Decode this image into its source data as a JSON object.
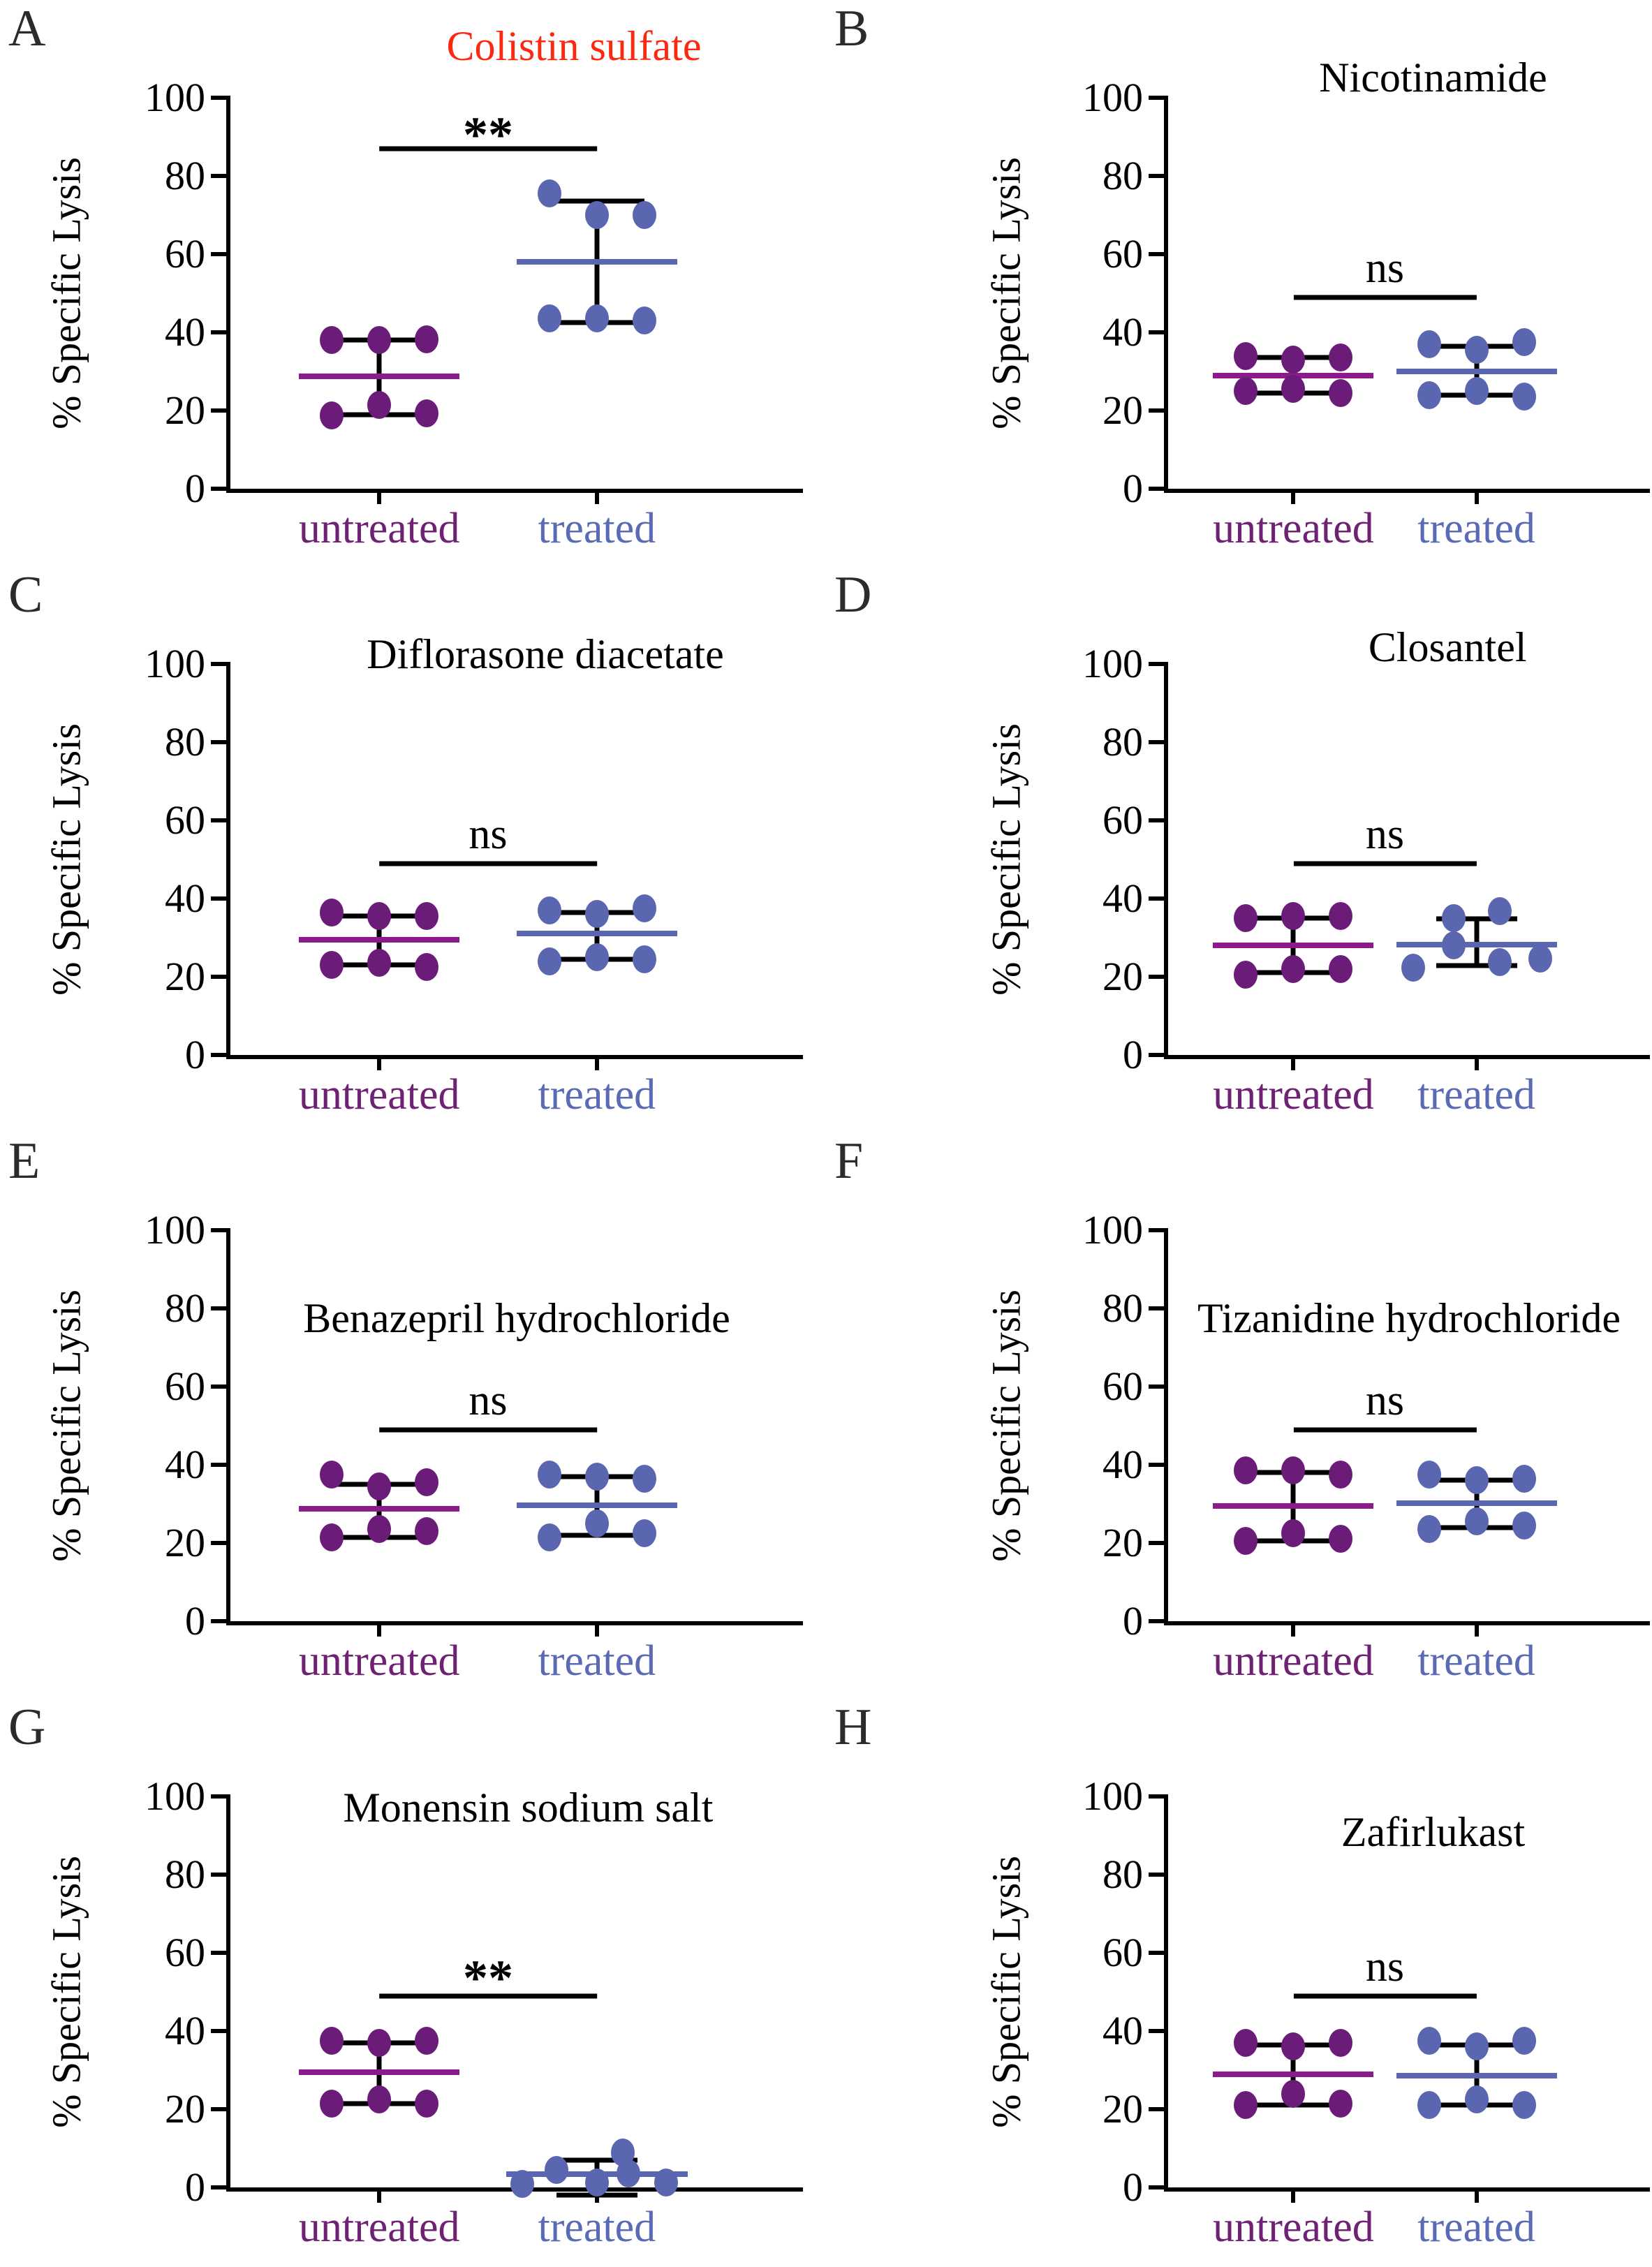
{
  "figure": {
    "ylabel": "% Specific Lysis",
    "y_ticks": [
      0,
      20,
      40,
      60,
      80,
      100
    ],
    "categories": [
      {
        "label": "untreated",
        "color": "#6f2173",
        "dot_color": "#6a1c78",
        "median_color": "#8b1a8b"
      },
      {
        "label": "treated",
        "color": "#5a6ab5",
        "dot_color": "#5a66b0",
        "median_color": "#5a66b0"
      }
    ],
    "colors": {
      "axis": "#000000",
      "red_title": "#fb2912",
      "black_title": "#000000",
      "letter": "#2b2b2b"
    }
  },
  "chart_data": [
    {
      "type": "scatter",
      "panel": "A",
      "title": "Colistin sulfate",
      "title_color": "#fb2912",
      "ylabel": "% Specific Lysis",
      "ylim": [
        0,
        100
      ],
      "significance": {
        "label": "**",
        "bar_y": 87,
        "label_y": 97,
        "bold": true
      },
      "title_top": -105,
      "title_left_pct": 60,
      "groups": [
        {
          "name": "untreated",
          "median": 28.7,
          "whisker_low": 19,
          "whisker_high": 38,
          "points": [
            {
              "dx": -68,
              "y": 38
            },
            {
              "dx": 0,
              "y": 38
            },
            {
              "dx": 68,
              "y": 38.2
            },
            {
              "dx": -68,
              "y": 18.8
            },
            {
              "dx": 0,
              "y": 21.5
            },
            {
              "dx": 68,
              "y": 19.3
            }
          ]
        },
        {
          "name": "treated",
          "median": 58,
          "whisker_low": 42.5,
          "whisker_high": 73.5,
          "points": [
            {
              "dx": -68,
              "y": 75.5
            },
            {
              "dx": 0,
              "y": 70
            },
            {
              "dx": 68,
              "y": 70
            },
            {
              "dx": -68,
              "y": 43.5
            },
            {
              "dx": 0,
              "y": 43.5
            },
            {
              "dx": 68,
              "y": 43
            }
          ]
        }
      ]
    },
    {
      "type": "scatter",
      "panel": "B",
      "title": "Nicotinamide",
      "title_color": "#000000",
      "ylabel": "% Specific Lysis",
      "ylim": [
        0,
        100
      ],
      "significance": {
        "label": "ns",
        "bar_y": 49,
        "label_y": 62,
        "bold": false
      },
      "title_top": -60,
      "title_left_pct": 55,
      "groups": [
        {
          "name": "untreated",
          "median": 29,
          "whisker_low": 24.5,
          "whisker_high": 33.5,
          "points": [
            {
              "dx": -68,
              "y": 34
            },
            {
              "dx": 0,
              "y": 33
            },
            {
              "dx": 68,
              "y": 33.5
            },
            {
              "dx": -68,
              "y": 25
            },
            {
              "dx": 0,
              "y": 25.5
            },
            {
              "dx": 68,
              "y": 24.5
            }
          ]
        },
        {
          "name": "treated",
          "median": 30,
          "whisker_low": 24,
          "whisker_high": 36.5,
          "points": [
            {
              "dx": -68,
              "y": 37
            },
            {
              "dx": 0,
              "y": 35.5
            },
            {
              "dx": 68,
              "y": 37.5
            },
            {
              "dx": -68,
              "y": 24
            },
            {
              "dx": 0,
              "y": 25
            },
            {
              "dx": 68,
              "y": 23.5
            }
          ]
        }
      ]
    },
    {
      "type": "scatter",
      "panel": "C",
      "title": "Diflorasone diacetate",
      "title_color": "#000000",
      "ylabel": "% Specific Lysis",
      "ylim": [
        0,
        100
      ],
      "significance": {
        "label": "ns",
        "bar_y": 49,
        "label_y": 62,
        "bold": false
      },
      "title_top": -45,
      "title_left_pct": 55,
      "groups": [
        {
          "name": "untreated",
          "median": 29.5,
          "whisker_low": 23,
          "whisker_high": 35.5,
          "points": [
            {
              "dx": -68,
              "y": 36.5
            },
            {
              "dx": 0,
              "y": 35.5
            },
            {
              "dx": 68,
              "y": 35.5
            },
            {
              "dx": -68,
              "y": 23
            },
            {
              "dx": 0,
              "y": 23.5
            },
            {
              "dx": 68,
              "y": 22.5
            }
          ]
        },
        {
          "name": "treated",
          "median": 31,
          "whisker_low": 24.5,
          "whisker_high": 36.5,
          "points": [
            {
              "dx": -68,
              "y": 37
            },
            {
              "dx": 0,
              "y": 36
            },
            {
              "dx": 68,
              "y": 37.5
            },
            {
              "dx": -68,
              "y": 24
            },
            {
              "dx": 0,
              "y": 25
            },
            {
              "dx": 68,
              "y": 24.5
            }
          ]
        }
      ]
    },
    {
      "type": "scatter",
      "panel": "D",
      "title": "Closantel",
      "title_color": "#000000",
      "ylabel": "% Specific Lysis",
      "ylim": [
        0,
        100
      ],
      "significance": {
        "label": "ns",
        "bar_y": 49,
        "label_y": 62,
        "bold": false
      },
      "title_top": -55,
      "title_left_pct": 58,
      "groups": [
        {
          "name": "untreated",
          "median": 28,
          "whisker_low": 21,
          "whisker_high": 35,
          "points": [
            {
              "dx": -68,
              "y": 35
            },
            {
              "dx": 0,
              "y": 35.5
            },
            {
              "dx": 68,
              "y": 35.5
            },
            {
              "dx": -68,
              "y": 20.5
            },
            {
              "dx": 0,
              "y": 22
            },
            {
              "dx": 68,
              "y": 22
            }
          ]
        },
        {
          "name": "treated",
          "median": 28.3,
          "whisker_low": 22.8,
          "whisker_high": 34.8,
          "cap_half": 58,
          "points": [
            {
              "dx": -33,
              "y": 35
            },
            {
              "dx": 33,
              "y": 36.7
            },
            {
              "dx": -33,
              "y": 28.1
            },
            {
              "dx": -91,
              "y": 22.4
            },
            {
              "dx": 33,
              "y": 23.7
            },
            {
              "dx": 91,
              "y": 24.6
            }
          ]
        }
      ]
    },
    {
      "type": "scatter",
      "panel": "E",
      "title": "Benazepril hydrochloride",
      "title_color": "#000000",
      "ylabel": "% Specific Lysis",
      "ylim": [
        0,
        100
      ],
      "significance": {
        "label": "ns",
        "bar_y": 49,
        "label_y": 62,
        "bold": false
      },
      "title_top": 95,
      "title_left_pct": 50,
      "groups": [
        {
          "name": "untreated",
          "median": 28.7,
          "whisker_low": 21.5,
          "whisker_high": 35,
          "points": [
            {
              "dx": -68,
              "y": 37.5
            },
            {
              "dx": 0,
              "y": 34.5
            },
            {
              "dx": 68,
              "y": 35.5
            },
            {
              "dx": -68,
              "y": 21.5
            },
            {
              "dx": 0,
              "y": 23.5
            },
            {
              "dx": 68,
              "y": 23
            }
          ]
        },
        {
          "name": "treated",
          "median": 29.7,
          "whisker_low": 22,
          "whisker_high": 37,
          "points": [
            {
              "dx": -68,
              "y": 37.5
            },
            {
              "dx": 0,
              "y": 37
            },
            {
              "dx": 68,
              "y": 36.5
            },
            {
              "dx": -68,
              "y": 21.5
            },
            {
              "dx": 0,
              "y": 25
            },
            {
              "dx": 68,
              "y": 22.5
            }
          ]
        }
      ]
    },
    {
      "type": "scatter",
      "panel": "F",
      "title": "Tizanidine hydrochloride",
      "title_color": "#000000",
      "ylabel": "% Specific Lysis",
      "ylim": [
        0,
        100
      ],
      "significance": {
        "label": "ns",
        "bar_y": 49,
        "label_y": 62,
        "bold": false
      },
      "title_top": 95,
      "title_left_pct": 50,
      "groups": [
        {
          "name": "untreated",
          "median": 29.5,
          "whisker_low": 20.5,
          "whisker_high": 38,
          "points": [
            {
              "dx": -68,
              "y": 38.5
            },
            {
              "dx": 0,
              "y": 38.5
            },
            {
              "dx": 68,
              "y": 37.5
            },
            {
              "dx": -68,
              "y": 20.5
            },
            {
              "dx": 0,
              "y": 22.5
            },
            {
              "dx": 68,
              "y": 21
            }
          ]
        },
        {
          "name": "treated",
          "median": 30.2,
          "whisker_low": 24,
          "whisker_high": 36,
          "points": [
            {
              "dx": -68,
              "y": 37.5
            },
            {
              "dx": 0,
              "y": 36
            },
            {
              "dx": 68,
              "y": 36.5
            },
            {
              "dx": -68,
              "y": 23.5
            },
            {
              "dx": 0,
              "y": 25.5
            },
            {
              "dx": 68,
              "y": 24.5
            }
          ]
        }
      ]
    },
    {
      "type": "scatter",
      "panel": "G",
      "title": "Monensin sodium salt",
      "title_color": "#000000",
      "ylabel": "% Specific Lysis",
      "ylim": [
        0,
        100
      ],
      "significance": {
        "label": "**",
        "bar_y": 49,
        "label_y": 60,
        "bold": true
      },
      "title_top": -15,
      "title_left_pct": 52,
      "groups": [
        {
          "name": "untreated",
          "median": 29.5,
          "whisker_low": 21.5,
          "whisker_high": 37,
          "points": [
            {
              "dx": -68,
              "y": 37.5
            },
            {
              "dx": 0,
              "y": 37
            },
            {
              "dx": 68,
              "y": 37.5
            },
            {
              "dx": -68,
              "y": 21.5
            },
            {
              "dx": 0,
              "y": 22.5
            },
            {
              "dx": 68,
              "y": 21.5
            }
          ]
        },
        {
          "name": "treated",
          "median": 3.4,
          "whisker_low": -2,
          "whisker_high": 7,
          "cap_half": 58,
          "median_half": 130,
          "points": [
            {
              "dx": -107,
              "y": 0.9
            },
            {
              "dx": -58,
              "y": 4.5
            },
            {
              "dx": 0,
              "y": 1.3
            },
            {
              "dx": 37,
              "y": 9
            },
            {
              "dx": 45,
              "y": 3.6
            },
            {
              "dx": 99,
              "y": 1.3
            }
          ]
        }
      ]
    },
    {
      "type": "scatter",
      "panel": "H",
      "title": "Zafirlukast",
      "title_color": "#000000",
      "ylabel": "% Specific Lysis",
      "ylim": [
        0,
        100
      ],
      "significance": {
        "label": "ns",
        "bar_y": 49,
        "label_y": 62,
        "bold": false
      },
      "title_top": 20,
      "title_left_pct": 55,
      "groups": [
        {
          "name": "untreated",
          "median": 29,
          "whisker_low": 21,
          "whisker_high": 36.5,
          "points": [
            {
              "dx": -68,
              "y": 37
            },
            {
              "dx": 0,
              "y": 36
            },
            {
              "dx": 68,
              "y": 37
            },
            {
              "dx": -68,
              "y": 21
            },
            {
              "dx": 0,
              "y": 24
            },
            {
              "dx": 68,
              "y": 21.5
            }
          ]
        },
        {
          "name": "treated",
          "median": 28.6,
          "whisker_low": 21,
          "whisker_high": 36.5,
          "points": [
            {
              "dx": -68,
              "y": 37.5
            },
            {
              "dx": 0,
              "y": 36
            },
            {
              "dx": 68,
              "y": 37.5
            },
            {
              "dx": -68,
              "y": 21
            },
            {
              "dx": 0,
              "y": 22.5
            },
            {
              "dx": 68,
              "y": 21
            }
          ]
        }
      ]
    }
  ]
}
